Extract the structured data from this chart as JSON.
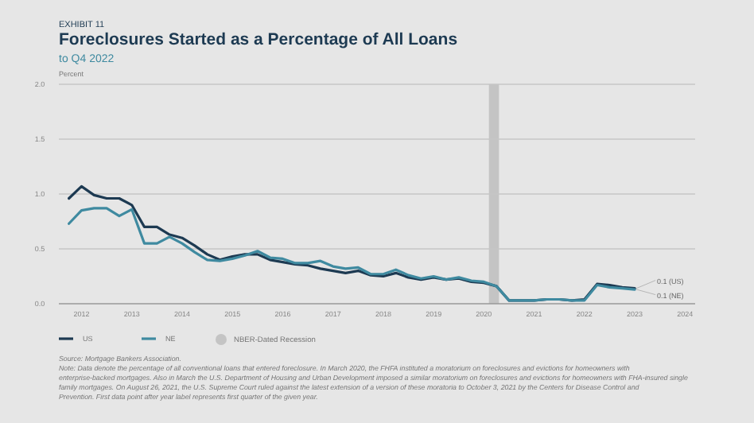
{
  "chart_data": {
    "type": "line",
    "title": "Foreclosures Started as a Percentage of All Loans",
    "subtitle": "to Q4 2022",
    "ylabel": "Percent",
    "annotations": [
      "EXHIBIT 11",
      {
        "text": "0.1 (US)",
        "x": 2023,
        "y": 0.14
      },
      {
        "text": "0.1 (NE)",
        "x": 2023,
        "y": 0.13
      },
      "Source: Mortgage Bankers Association.",
      "Note: Data denote the percentage of all conventional loans that entered foreclosure. In March 2020, the FHFA instituted a moratorium on foreclosures and evictions for homeowners with enterprise-backed mortgages. Also in March the U.S. Department of Housing and Urban Development imposed a similar moratorium on foreclosures and evictions for homeowners with FHA-insured single family mortgages. On August 26, 2021, the U.S. Supreme Court ruled against the latest extension of a version of these moratoria to October 3, 2021 by the Centers for Disease Control and Prevention. First data point after year label represents first quarter of the given year."
    ],
    "x": [
      2011.75,
      2012,
      2012.25,
      2012.5,
      2012.75,
      2013,
      2013.25,
      2013.5,
      2013.75,
      2014,
      2014.25,
      2014.5,
      2014.75,
      2015,
      2015.25,
      2015.5,
      2015.75,
      2016,
      2016.25,
      2016.5,
      2016.75,
      2017,
      2017.25,
      2017.5,
      2017.75,
      2018,
      2018.25,
      2018.5,
      2018.75,
      2019,
      2019.25,
      2019.5,
      2019.75,
      2020,
      2020.25,
      2020.5,
      2020.75,
      2021,
      2021.25,
      2021.5,
      2021.75,
      2022,
      2022.25,
      2022.5,
      2022.75,
      2023
    ],
    "series": [
      {
        "name": "US",
        "color": "#1d3a52",
        "values": [
          0.96,
          1.07,
          0.99,
          0.96,
          0.96,
          0.9,
          0.7,
          0.7,
          0.63,
          0.6,
          0.53,
          0.45,
          0.4,
          0.43,
          0.45,
          0.45,
          0.4,
          0.38,
          0.36,
          0.35,
          0.32,
          0.3,
          0.28,
          0.3,
          0.26,
          0.25,
          0.28,
          0.24,
          0.22,
          0.24,
          0.22,
          0.23,
          0.2,
          0.19,
          0.16,
          0.03,
          0.03,
          0.03,
          0.04,
          0.04,
          0.03,
          0.04,
          0.18,
          0.17,
          0.15,
          0.14
        ]
      },
      {
        "name": "NE",
        "color": "#3f8aa0",
        "values": [
          0.73,
          0.85,
          0.87,
          0.87,
          0.8,
          0.86,
          0.55,
          0.55,
          0.61,
          0.55,
          0.47,
          0.4,
          0.39,
          0.41,
          0.44,
          0.48,
          0.42,
          0.41,
          0.37,
          0.37,
          0.39,
          0.34,
          0.32,
          0.33,
          0.27,
          0.27,
          0.31,
          0.26,
          0.23,
          0.25,
          0.22,
          0.24,
          0.21,
          0.2,
          0.16,
          0.03,
          0.03,
          0.03,
          0.04,
          0.04,
          0.03,
          0.03,
          0.17,
          0.15,
          0.14,
          0.13
        ]
      }
    ],
    "bands": [
      {
        "axis": "x",
        "from": 2020.1,
        "to": 2020.3,
        "label": "NBER-Dated Recession",
        "color": "#c4c4c4"
      }
    ],
    "xlim": [
      2011.55,
      2024.2
    ],
    "xticks": [
      2012,
      2013,
      2014,
      2015,
      2016,
      2017,
      2018,
      2019,
      2020,
      2021,
      2022,
      2023,
      2024
    ],
    "ylim": [
      0,
      2
    ],
    "yticks": [
      {
        "value": 0,
        "label": "0.0"
      },
      {
        "value": 0.5,
        "label": "0.5"
      },
      {
        "value": 1,
        "label": "1.0"
      },
      {
        "value": 1.5,
        "label": "1.5"
      },
      {
        "value": 2,
        "label": "2.0"
      }
    ],
    "grid": "y",
    "legend": "bottom",
    "line_style": "solid",
    "marker": "none"
  }
}
